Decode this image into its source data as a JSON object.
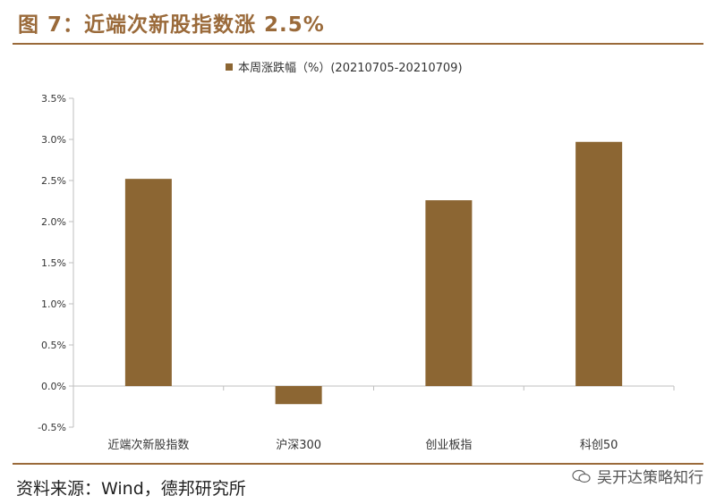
{
  "header": {
    "title": "图 7：近端次新股指数涨 2.5%"
  },
  "footer": {
    "source": "资料来源：Wind，德邦研究所",
    "watermark": "吴开达策略知行"
  },
  "colors": {
    "accent": "#9a6a3a",
    "bar": "#8c6633",
    "axis": "#bfbfbf"
  },
  "chart_data": {
    "type": "bar",
    "legend": "本周涨跌幅（%）(20210705-20210709)",
    "legend_position": "top-center",
    "categories": [
      "近端次新股指数",
      "沪深300",
      "创业板指",
      "科创50"
    ],
    "values": [
      2.52,
      -0.22,
      2.26,
      2.97
    ],
    "ylim": [
      -0.5,
      3.5
    ],
    "yticks": [
      3.5,
      3.0,
      2.5,
      2.0,
      1.5,
      1.0,
      0.5,
      0.0,
      -0.5
    ],
    "ytick_labels": [
      "3.5%",
      "3.0%",
      "2.5%",
      "2.0%",
      "1.5%",
      "1.0%",
      "0.5%",
      "0.0%",
      "-0.5%"
    ],
    "grid": false
  }
}
